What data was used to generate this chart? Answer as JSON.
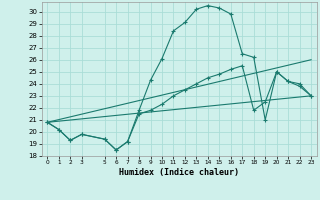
{
  "xlabel": "Humidex (Indice chaleur)",
  "xlim": [
    -0.5,
    23.5
  ],
  "ylim": [
    18,
    30.8
  ],
  "yticks": [
    18,
    19,
    20,
    21,
    22,
    23,
    24,
    25,
    26,
    27,
    28,
    29,
    30
  ],
  "xtick_positions": [
    0,
    1,
    2,
    3,
    5,
    6,
    7,
    8,
    9,
    10,
    11,
    12,
    13,
    14,
    15,
    16,
    17,
    18,
    19,
    20,
    21,
    22,
    23
  ],
  "background_color": "#cff0eb",
  "grid_color": "#aaddd7",
  "line_color": "#1a7a6e",
  "line1_x": [
    0,
    1,
    2,
    3,
    5,
    6,
    7,
    8,
    9,
    10,
    11,
    12,
    13,
    14,
    15,
    16,
    17,
    18,
    19,
    20,
    21,
    22,
    23
  ],
  "line1_y": [
    20.8,
    20.2,
    19.3,
    19.8,
    19.4,
    18.5,
    19.2,
    21.8,
    24.3,
    26.1,
    28.4,
    29.1,
    30.2,
    30.5,
    30.3,
    29.8,
    26.5,
    26.2,
    21.0,
    25.0,
    24.2,
    23.8,
    23.0
  ],
  "line2_x": [
    0,
    1,
    2,
    3,
    5,
    6,
    7,
    8,
    9,
    10,
    11,
    12,
    13,
    14,
    15,
    16,
    17,
    18,
    19,
    20,
    21,
    22,
    23
  ],
  "line2_y": [
    20.8,
    20.2,
    19.3,
    19.8,
    19.4,
    18.5,
    19.2,
    21.5,
    21.8,
    22.3,
    23.0,
    23.5,
    24.0,
    24.5,
    24.8,
    25.2,
    25.5,
    21.8,
    22.5,
    25.0,
    24.2,
    24.0,
    23.0
  ],
  "line3_x": [
    0,
    23
  ],
  "line3_y": [
    20.8,
    26.0
  ],
  "line4_x": [
    0,
    23
  ],
  "line4_y": [
    20.8,
    23.0
  ]
}
